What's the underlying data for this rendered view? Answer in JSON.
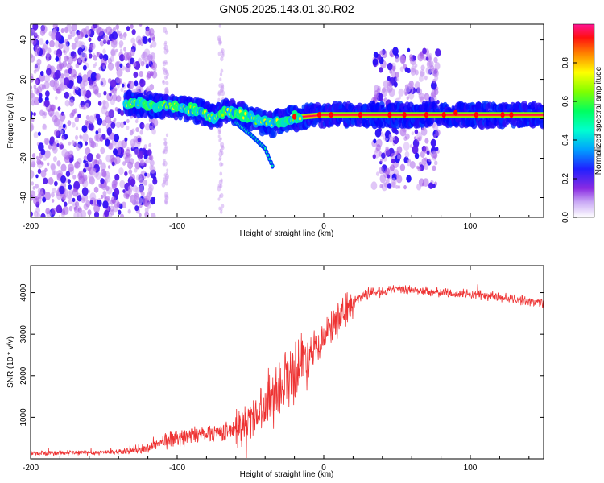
{
  "title": "GN05.2025.143.01.30.R02",
  "colors": {
    "snr_line": "#ee3333",
    "scatter_purple": "#7a22ee",
    "band_light": "#cfa8ff"
  },
  "chart_data": [
    {
      "type": "heatmap",
      "xlabel": "Height of straight line (km)",
      "ylabel": "Frequency (Hz)",
      "xlim": [
        -200,
        150
      ],
      "ylim": [
        -50,
        48
      ],
      "x_ticks": [
        -200,
        -100,
        0,
        100
      ],
      "x_tick_labels": [
        "-200",
        "-100",
        "0",
        "100"
      ],
      "y_ticks": [
        -40,
        -20,
        0,
        20,
        40
      ],
      "y_tick_labels": [
        "-40",
        "-20",
        "0",
        "20",
        "40"
      ],
      "colorbar": {
        "label": "Normalized spectral amplitude",
        "range": [
          0,
          1
        ],
        "ticks": [
          0.0,
          0.2,
          0.4,
          0.6,
          0.8
        ],
        "tick_labels": [
          "0.0",
          "0.2",
          "0.4",
          "0.6",
          "0.8"
        ],
        "colormap": [
          "#ffffff",
          "#8a2be2",
          "#0000ff",
          "#00c8ff",
          "#00ff7f",
          "#7fff00",
          "#ffff00",
          "#ff8000",
          "#ff0000",
          "#ff1493"
        ]
      },
      "features": [
        {
          "name": "broadband noise",
          "x_range": [
            -200,
            -115
          ],
          "f_range": [
            -50,
            48
          ],
          "amplitude": 0.2
        },
        {
          "name": "broadband noise",
          "x_range": [
            34,
            78
          ],
          "f_range": [
            -35,
            35
          ],
          "amplitude": 0.2
        },
        {
          "name": "main tone",
          "points": [
            [
              -135,
              8
            ],
            [
              -120,
              7
            ],
            [
              -100,
              6
            ],
            [
              -85,
              4
            ],
            [
              -75,
              1
            ],
            [
              -65,
              4
            ],
            [
              -55,
              2
            ],
            [
              -45,
              -1
            ],
            [
              -35,
              -3
            ],
            [
              -25,
              0
            ],
            [
              -15,
              1
            ],
            [
              0,
              2
            ],
            [
              40,
              2
            ],
            [
              80,
              2
            ],
            [
              100,
              2
            ],
            [
              150,
              2
            ]
          ],
          "amplitude": 0.95
        },
        {
          "name": "descending branch",
          "points": [
            [
              -60,
              -2
            ],
            [
              -50,
              -8
            ],
            [
              -40,
              -15
            ],
            [
              -35,
              -24
            ]
          ],
          "amplitude": 0.4
        }
      ]
    },
    {
      "type": "line",
      "xlabel": "Height of straight line (km)",
      "ylabel": "SNR (10 * v/v)",
      "xlim": [
        -200,
        150
      ],
      "ylim": [
        0,
        4650
      ],
      "x_ticks": [
        -200,
        -100,
        0,
        100
      ],
      "x_tick_labels": [
        "-200",
        "-100",
        "0",
        "100"
      ],
      "y_ticks": [
        1000,
        2000,
        3000,
        4000
      ],
      "y_tick_labels": [
        "1000",
        "2000",
        "3000",
        "4000"
      ],
      "series": [
        {
          "x": [
            -200,
            -180,
            -160,
            -140,
            -130,
            -120,
            -115,
            -110,
            -100,
            -90,
            -80,
            -70,
            -60,
            -55,
            -50,
            -45,
            -40,
            -35,
            -30,
            -25,
            -20,
            -15,
            -10,
            -5,
            0,
            5,
            10,
            15,
            20,
            25,
            30,
            35,
            40,
            50,
            60,
            70,
            80,
            90,
            100,
            110,
            120,
            130,
            140,
            150
          ],
          "y": [
            130,
            140,
            150,
            170,
            200,
            250,
            350,
            420,
            500,
            560,
            620,
            650,
            700,
            780,
            950,
            1150,
            1350,
            1550,
            1750,
            1950,
            2150,
            2350,
            2550,
            2750,
            2950,
            3150,
            3350,
            3550,
            3750,
            3900,
            3980,
            4020,
            4050,
            4070,
            4060,
            4030,
            4000,
            3980,
            3960,
            3930,
            3890,
            3840,
            3790,
            3740
          ]
        }
      ]
    }
  ]
}
